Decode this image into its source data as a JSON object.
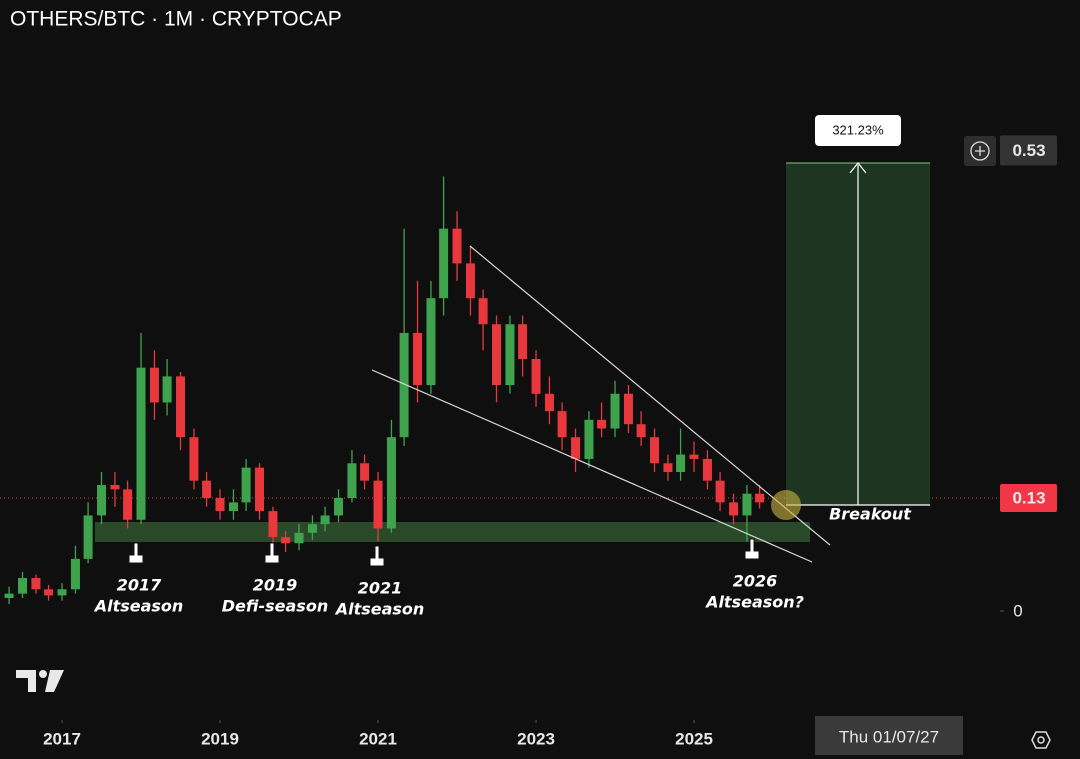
{
  "chart_data": {
    "type": "candlestick",
    "title": "OTHERS/BTC · 1M · CRYPTOCAP",
    "x": [
      2016.33,
      2016.5,
      2016.67,
      2016.83,
      2017.0,
      2017.17,
      2017.33,
      2017.5,
      2017.67,
      2017.83,
      2018.0,
      2018.17,
      2018.33,
      2018.5,
      2018.67,
      2018.83,
      2019.0,
      2019.17,
      2019.33,
      2019.5,
      2019.67,
      2019.83,
      2020.0,
      2020.17,
      2020.33,
      2020.5,
      2020.67,
      2020.83,
      2021.0,
      2021.17,
      2021.33,
      2021.5,
      2021.67,
      2021.83,
      2022.0,
      2022.17,
      2022.33,
      2022.5,
      2022.67,
      2022.83,
      2023.0,
      2023.17,
      2023.33,
      2023.5,
      2023.67,
      2023.83,
      2024.0,
      2024.17,
      2024.33,
      2024.5,
      2024.67,
      2024.83,
      2025.0,
      2025.17,
      2025.33,
      2025.5,
      2025.67,
      2025.83
    ],
    "open": [
      0.015,
      0.02,
      0.038,
      0.025,
      0.018,
      0.025,
      0.06,
      0.11,
      0.145,
      0.14,
      0.105,
      0.28,
      0.24,
      0.27,
      0.2,
      0.15,
      0.13,
      0.115,
      0.125,
      0.165,
      0.115,
      0.085,
      0.078,
      0.09,
      0.1,
      0.11,
      0.13,
      0.17,
      0.15,
      0.095,
      0.2,
      0.32,
      0.26,
      0.36,
      0.44,
      0.4,
      0.36,
      0.33,
      0.26,
      0.33,
      0.29,
      0.25,
      0.23,
      0.2,
      0.175,
      0.22,
      0.21,
      0.25,
      0.215,
      0.2,
      0.17,
      0.16,
      0.18,
      0.175,
      0.15,
      0.125,
      0.11,
      0.135
    ],
    "high": [
      0.028,
      0.045,
      0.042,
      0.03,
      0.032,
      0.075,
      0.125,
      0.16,
      0.16,
      0.15,
      0.32,
      0.3,
      0.29,
      0.275,
      0.21,
      0.16,
      0.14,
      0.14,
      0.175,
      0.17,
      0.12,
      0.092,
      0.1,
      0.11,
      0.12,
      0.14,
      0.185,
      0.18,
      0.16,
      0.22,
      0.44,
      0.38,
      0.38,
      0.5,
      0.46,
      0.42,
      0.37,
      0.34,
      0.34,
      0.34,
      0.3,
      0.27,
      0.24,
      0.21,
      0.23,
      0.24,
      0.265,
      0.26,
      0.23,
      0.21,
      0.18,
      0.21,
      0.195,
      0.185,
      0.16,
      0.135,
      0.145,
      0.145
    ],
    "low": [
      0.008,
      0.015,
      0.02,
      0.012,
      0.012,
      0.02,
      0.055,
      0.1,
      0.12,
      0.095,
      0.1,
      0.22,
      0.225,
      0.185,
      0.14,
      0.12,
      0.105,
      0.105,
      0.115,
      0.105,
      0.075,
      0.068,
      0.07,
      0.082,
      0.092,
      0.102,
      0.125,
      0.14,
      0.08,
      0.09,
      0.19,
      0.24,
      0.25,
      0.34,
      0.38,
      0.34,
      0.3,
      0.24,
      0.25,
      0.27,
      0.235,
      0.215,
      0.185,
      0.16,
      0.165,
      0.2,
      0.2,
      0.205,
      0.19,
      0.16,
      0.15,
      0.15,
      0.16,
      0.14,
      0.115,
      0.1,
      0.08,
      0.118
    ],
    "close": [
      0.02,
      0.038,
      0.025,
      0.018,
      0.025,
      0.06,
      0.11,
      0.145,
      0.14,
      0.105,
      0.28,
      0.24,
      0.27,
      0.2,
      0.15,
      0.13,
      0.115,
      0.125,
      0.165,
      0.115,
      0.085,
      0.078,
      0.09,
      0.1,
      0.11,
      0.13,
      0.17,
      0.15,
      0.095,
      0.2,
      0.32,
      0.26,
      0.36,
      0.44,
      0.4,
      0.36,
      0.33,
      0.26,
      0.33,
      0.29,
      0.25,
      0.23,
      0.2,
      0.175,
      0.22,
      0.21,
      0.25,
      0.215,
      0.2,
      0.17,
      0.16,
      0.18,
      0.175,
      0.15,
      0.125,
      0.11,
      0.135,
      0.125
    ],
    "up_color": "#3fa34d",
    "down_color": "#e8383d",
    "xlim": [
      2016.215,
      2028.873
    ],
    "xticks": [
      2017,
      2019,
      2021,
      2023,
      2025
    ],
    "ylim": [
      -0.1254,
      0.7031
    ],
    "yticks": [
      0,
      0.13,
      0.53
    ],
    "annotations": [
      [
        "2017",
        "Altseason"
      ],
      [
        "2019",
        "Defi-season"
      ],
      [
        "2021",
        "Altseason"
      ],
      [
        "2026",
        "Altseason?"
      ]
    ],
    "measure_label": "321.23%",
    "breakout_label": "Breakout",
    "crosshair_label": "Thu 01/07/27"
  }
}
